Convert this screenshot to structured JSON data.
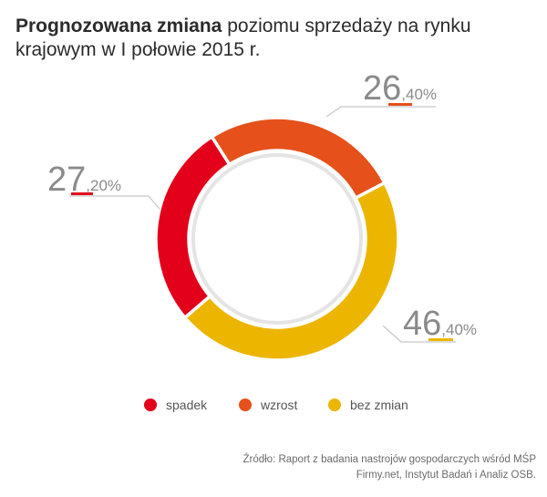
{
  "header": {
    "title_bold": "Prognozowana zmiana",
    "title_rest": " poziomu sprzedaży na rynku krajowym w I połowie 2015 r."
  },
  "chart_data": {
    "type": "pie",
    "donut": true,
    "slices": [
      {
        "name": "spadek",
        "value": 27.2,
        "int_label": "27",
        "dec_label": ",20%",
        "color": "#e2001a"
      },
      {
        "name": "wzrost",
        "value": 26.4,
        "int_label": "26",
        "dec_label": ",40%",
        "color": "#e5501b"
      },
      {
        "name": "bez zmian",
        "value": 46.4,
        "int_label": "46",
        "dec_label": ",40%",
        "color": "#ecb600"
      }
    ],
    "legend_position": "bottom"
  },
  "source": {
    "line1": "Źródło: Raport z badania nastrojów gospodarczych wśród MŚP",
    "line2": "Firmy.net, Instytut Badań i Analiz OSB."
  }
}
